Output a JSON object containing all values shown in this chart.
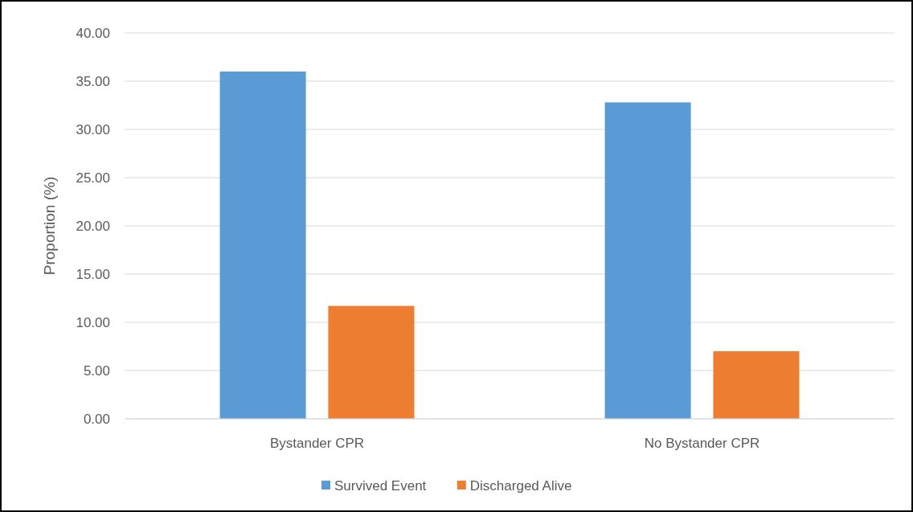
{
  "chart_data": {
    "type": "bar",
    "ylabel": "Proportion (%)",
    "categories": [
      "Bystander CPR",
      "No Bystander CPR"
    ],
    "series": [
      {
        "name": "Survived Event",
        "color": "#5b9bd5",
        "values": [
          36.0,
          32.8
        ]
      },
      {
        "name": "Discharged Alive",
        "color": "#ed7d31",
        "values": [
          11.7,
          7.0
        ]
      }
    ],
    "ylim": [
      0,
      40
    ],
    "yticks": [
      {
        "value": 0,
        "label": "0.00"
      },
      {
        "value": 5,
        "label": "5.00"
      },
      {
        "value": 10,
        "label": "10.00"
      },
      {
        "value": 15,
        "label": "15.00"
      },
      {
        "value": 20,
        "label": "20.00"
      },
      {
        "value": 25,
        "label": "25.00"
      },
      {
        "value": 30,
        "label": "30.00"
      },
      {
        "value": 35,
        "label": "35.00"
      },
      {
        "value": 40,
        "label": "40.00"
      }
    ],
    "grid": "y",
    "legend": "bottom"
  }
}
